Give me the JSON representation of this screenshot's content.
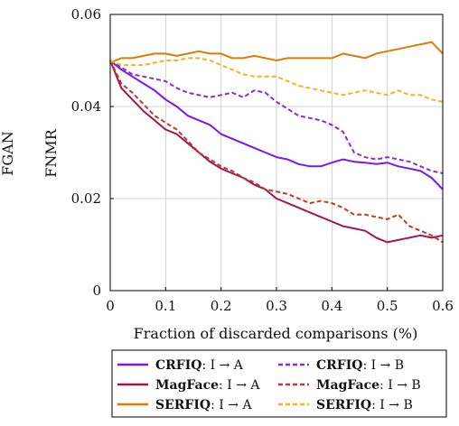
{
  "left_labels": [
    "FGAN",
    "FNMR"
  ],
  "legend": [
    {
      "method": "CRFIQ",
      "suffix": ": I → A"
    },
    {
      "method": "CRFIQ",
      "suffix": ": I → B"
    },
    {
      "method": "MagFace",
      "suffix": ": I → A"
    },
    {
      "method": "MagFace",
      "suffix": ": I → B"
    },
    {
      "method": "SERFIQ",
      "suffix": ": I → A"
    },
    {
      "method": "SERFIQ",
      "suffix": ": I → B"
    }
  ],
  "chart_data": {
    "type": "line",
    "title": "",
    "xlabel": "Fraction of discarded comparisons (%)",
    "ylabel": "FNMR",
    "xlim": [
      0,
      0.6
    ],
    "ylim": [
      0,
      0.06
    ],
    "xticks": [
      0,
      0.1,
      0.2,
      0.3,
      0.4,
      0.5,
      0.6
    ],
    "yticks": [
      0,
      0.02,
      0.04,
      0.06
    ],
    "xtick_labels": [
      "0",
      "0.1",
      "0.2",
      "0.3",
      "0.4",
      "0.5",
      "0.6"
    ],
    "ytick_labels": [
      "0",
      "0.02",
      "0.04",
      "0.06"
    ],
    "grid": true,
    "legend_position": "bottom",
    "series": [
      {
        "name": "CRFIQ: I → A",
        "color": "#7a18e8",
        "dashed": false,
        "x": [
          0,
          0.02,
          0.04,
          0.06,
          0.08,
          0.1,
          0.12,
          0.14,
          0.16,
          0.18,
          0.2,
          0.22,
          0.24,
          0.26,
          0.28,
          0.3,
          0.32,
          0.34,
          0.36,
          0.38,
          0.4,
          0.42,
          0.44,
          0.46,
          0.48,
          0.5,
          0.52,
          0.54,
          0.56,
          0.58,
          0.6
        ],
        "y": [
          0.05,
          0.048,
          0.0465,
          0.045,
          0.0435,
          0.0415,
          0.04,
          0.038,
          0.037,
          0.036,
          0.034,
          0.033,
          0.032,
          0.031,
          0.03,
          0.029,
          0.0285,
          0.0275,
          0.027,
          0.027,
          0.0278,
          0.0285,
          0.028,
          0.0278,
          0.0275,
          0.0278,
          0.027,
          0.0265,
          0.026,
          0.0245,
          0.022
        ]
      },
      {
        "name": "CRFIQ: I → B",
        "color": "#8a2be2",
        "dashed": true,
        "x": [
          0,
          0.02,
          0.04,
          0.06,
          0.08,
          0.1,
          0.12,
          0.14,
          0.16,
          0.18,
          0.2,
          0.22,
          0.24,
          0.26,
          0.28,
          0.3,
          0.32,
          0.34,
          0.36,
          0.38,
          0.4,
          0.42,
          0.44,
          0.46,
          0.48,
          0.5,
          0.52,
          0.54,
          0.56,
          0.58,
          0.6
        ],
        "y": [
          0.05,
          0.0485,
          0.047,
          0.0465,
          0.046,
          0.0455,
          0.044,
          0.043,
          0.0425,
          0.042,
          0.0425,
          0.043,
          0.042,
          0.0435,
          0.043,
          0.041,
          0.0395,
          0.038,
          0.0375,
          0.037,
          0.036,
          0.0345,
          0.03,
          0.029,
          0.0285,
          0.029,
          0.0285,
          0.028,
          0.027,
          0.026,
          0.0255
        ]
      },
      {
        "name": "MagFace: I → A",
        "color": "#a3174f",
        "dashed": false,
        "x": [
          0,
          0.02,
          0.04,
          0.06,
          0.08,
          0.1,
          0.12,
          0.14,
          0.16,
          0.18,
          0.2,
          0.22,
          0.24,
          0.26,
          0.28,
          0.3,
          0.32,
          0.34,
          0.36,
          0.38,
          0.4,
          0.42,
          0.44,
          0.46,
          0.48,
          0.5,
          0.52,
          0.54,
          0.56,
          0.58,
          0.6
        ],
        "y": [
          0.05,
          0.044,
          0.0415,
          0.039,
          0.037,
          0.035,
          0.034,
          0.032,
          0.03,
          0.028,
          0.0265,
          0.0255,
          0.0245,
          0.023,
          0.022,
          0.02,
          0.019,
          0.018,
          0.017,
          0.016,
          0.015,
          0.014,
          0.0135,
          0.013,
          0.0115,
          0.0105,
          0.011,
          0.0115,
          0.012,
          0.0115,
          0.012
        ]
      },
      {
        "name": "MagFace: I → B",
        "color": "#c0392b",
        "dashed": true,
        "x": [
          0,
          0.02,
          0.04,
          0.06,
          0.08,
          0.1,
          0.12,
          0.14,
          0.16,
          0.18,
          0.2,
          0.22,
          0.24,
          0.26,
          0.28,
          0.3,
          0.32,
          0.34,
          0.36,
          0.38,
          0.4,
          0.42,
          0.44,
          0.46,
          0.48,
          0.5,
          0.52,
          0.54,
          0.56,
          0.58,
          0.6
        ],
        "y": [
          0.05,
          0.045,
          0.043,
          0.0405,
          0.038,
          0.0365,
          0.035,
          0.0325,
          0.03,
          0.0285,
          0.027,
          0.026,
          0.0245,
          0.0235,
          0.022,
          0.0215,
          0.021,
          0.02,
          0.019,
          0.0195,
          0.019,
          0.018,
          0.0165,
          0.0165,
          0.016,
          0.0155,
          0.0165,
          0.014,
          0.013,
          0.012,
          0.0105
        ]
      },
      {
        "name": "SERFIQ: I → A",
        "color": "#e07b00",
        "dashed": false,
        "x": [
          0,
          0.02,
          0.04,
          0.06,
          0.08,
          0.1,
          0.12,
          0.14,
          0.16,
          0.18,
          0.2,
          0.22,
          0.24,
          0.26,
          0.28,
          0.3,
          0.32,
          0.34,
          0.36,
          0.38,
          0.4,
          0.42,
          0.44,
          0.46,
          0.48,
          0.5,
          0.52,
          0.54,
          0.56,
          0.58,
          0.6
        ],
        "y": [
          0.0495,
          0.0505,
          0.0505,
          0.051,
          0.0515,
          0.0515,
          0.051,
          0.0515,
          0.052,
          0.0515,
          0.0515,
          0.0505,
          0.0505,
          0.051,
          0.0505,
          0.05,
          0.0505,
          0.0505,
          0.0505,
          0.0505,
          0.0505,
          0.0515,
          0.051,
          0.0505,
          0.0515,
          0.052,
          0.0525,
          0.053,
          0.0535,
          0.054,
          0.0515
        ]
      },
      {
        "name": "SERFIQ: I → B",
        "color": "#f2b41f",
        "dashed": true,
        "x": [
          0,
          0.02,
          0.04,
          0.06,
          0.08,
          0.1,
          0.12,
          0.14,
          0.16,
          0.18,
          0.2,
          0.22,
          0.24,
          0.26,
          0.28,
          0.3,
          0.32,
          0.34,
          0.36,
          0.38,
          0.4,
          0.42,
          0.44,
          0.46,
          0.48,
          0.5,
          0.52,
          0.54,
          0.56,
          0.58,
          0.6
        ],
        "y": [
          0.05,
          0.049,
          0.049,
          0.049,
          0.0495,
          0.05,
          0.05,
          0.0505,
          0.0505,
          0.05,
          0.049,
          0.048,
          0.047,
          0.0465,
          0.0465,
          0.0465,
          0.0455,
          0.0445,
          0.044,
          0.0435,
          0.043,
          0.0425,
          0.043,
          0.0435,
          0.043,
          0.0425,
          0.0435,
          0.0425,
          0.0425,
          0.0415,
          0.041
        ]
      }
    ]
  }
}
